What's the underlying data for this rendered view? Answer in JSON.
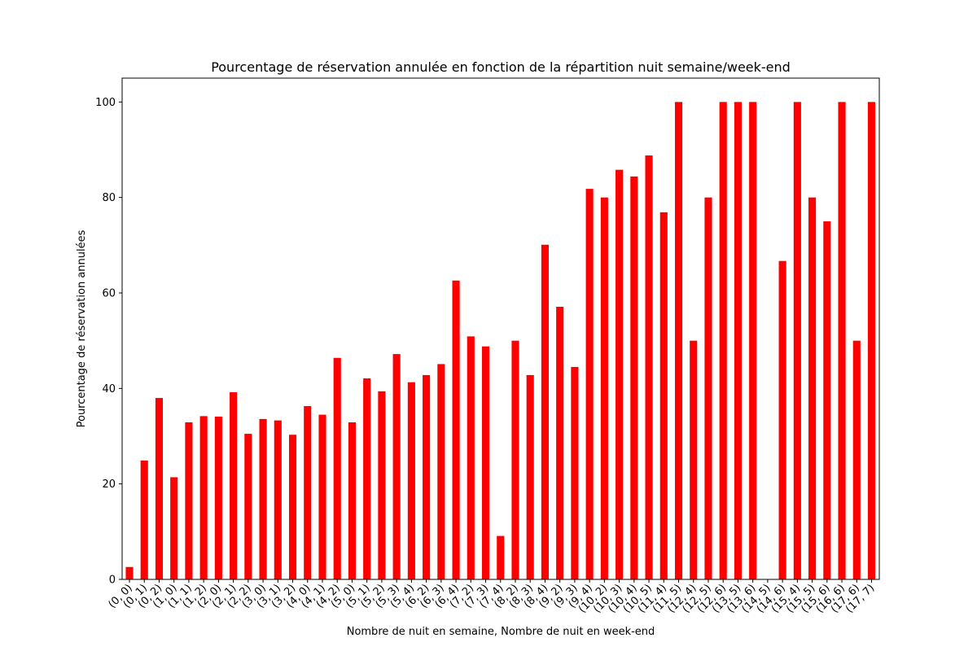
{
  "chart_data": {
    "type": "bar",
    "title": "Pourcentage de réservation annulée en fonction de la répartition nuit semaine/week-end",
    "xlabel": "Nombre de nuit en semaine, Nombre de nuit en week-end",
    "ylabel": "Pourcentage de réservation annulées",
    "ylim": [
      0,
      105
    ],
    "yticks": [
      0,
      20,
      40,
      60,
      80,
      100
    ],
    "bar_color": "#ff0000",
    "grid": false,
    "categories": [
      "(0, 0)",
      "(0, 1)",
      "(0, 2)",
      "(1, 0)",
      "(1, 1)",
      "(1, 2)",
      "(2, 0)",
      "(2, 1)",
      "(2, 2)",
      "(3, 0)",
      "(3, 1)",
      "(3, 2)",
      "(4, 0)",
      "(4, 1)",
      "(4, 2)",
      "(5, 0)",
      "(5, 1)",
      "(5, 2)",
      "(5, 3)",
      "(5, 4)",
      "(6, 2)",
      "(6, 3)",
      "(6, 4)",
      "(7, 2)",
      "(7, 3)",
      "(7, 4)",
      "(8, 2)",
      "(8, 3)",
      "(8, 4)",
      "(9, 2)",
      "(9, 3)",
      "(9, 4)",
      "(10, 2)",
      "(10, 3)",
      "(10, 4)",
      "(10, 5)",
      "(11, 4)",
      "(11, 5)",
      "(12, 4)",
      "(12, 5)",
      "(12, 6)",
      "(13, 5)",
      "(13, 6)",
      "(14, 5)",
      "(14, 6)",
      "(15, 4)",
      "(15, 5)",
      "(15, 6)",
      "(16, 6)",
      "(17, 6)",
      "(17, 7)"
    ],
    "values": [
      2.6,
      24.9,
      38.0,
      21.4,
      32.9,
      34.2,
      34.1,
      39.2,
      30.5,
      33.6,
      33.3,
      30.3,
      36.3,
      34.5,
      46.4,
      32.9,
      42.1,
      39.4,
      47.2,
      41.3,
      42.8,
      45.1,
      62.6,
      50.9,
      48.8,
      9.1,
      50.0,
      42.8,
      70.1,
      57.1,
      44.5,
      81.8,
      80.0,
      85.8,
      84.4,
      88.8,
      76.9,
      100,
      50.0,
      80.0,
      100,
      100,
      100,
      0,
      66.7,
      100,
      80.0,
      75.0,
      100,
      50.0,
      100
    ]
  }
}
